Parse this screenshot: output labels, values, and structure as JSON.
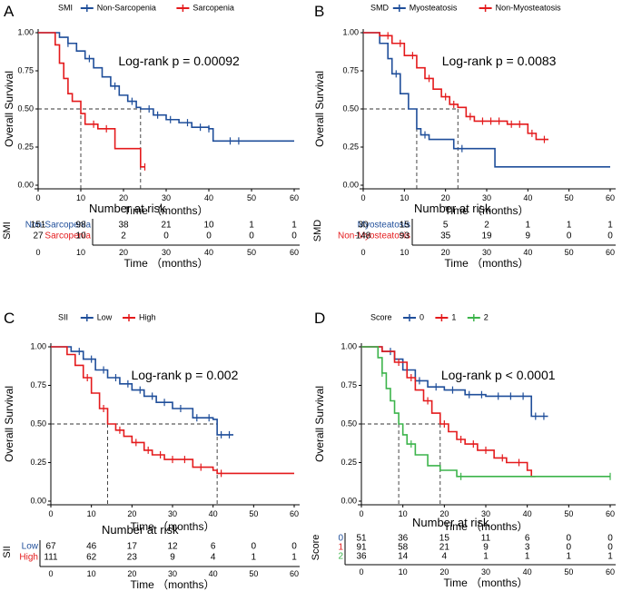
{
  "colors": {
    "blue": "#1f4e9a",
    "red": "#e41a1c",
    "green": "#3cb44b",
    "axis": "#000000",
    "text": "#000000"
  },
  "chart_data": [
    {
      "type": "line",
      "panel_label": "A",
      "title": "",
      "xlabel": "Time （months）",
      "ylabel": "Overall Survival",
      "xlim": [
        0,
        60
      ],
      "ylim": [
        0,
        1
      ],
      "xticks": [
        0,
        10,
        20,
        30,
        40,
        50,
        60
      ],
      "yticks": [
        "0.00",
        "0.25",
        "0.50",
        "0.75",
        "1.00"
      ],
      "legend_title": "SMI",
      "legend_position": "top",
      "annotation": "Log-rank p = 0.00092",
      "median_lines": [
        10,
        24
      ],
      "series": [
        {
          "name": "Non-Sarcopenia",
          "color_key": "blue",
          "points": [
            [
              0,
              1
            ],
            [
              5,
              0.97
            ],
            [
              7,
              0.93
            ],
            [
              9,
              0.88
            ],
            [
              11,
              0.83
            ],
            [
              13,
              0.77
            ],
            [
              15,
              0.71
            ],
            [
              17,
              0.65
            ],
            [
              19,
              0.59
            ],
            [
              21,
              0.55
            ],
            [
              23,
              0.51
            ],
            [
              24,
              0.5
            ],
            [
              27,
              0.46
            ],
            [
              30,
              0.43
            ],
            [
              33,
              0.41
            ],
            [
              36,
              0.38
            ],
            [
              40,
              0.37
            ],
            [
              41,
              0.29
            ],
            [
              42,
              0.29
            ],
            [
              60,
              0.29
            ]
          ],
          "censor": [
            7,
            12,
            18,
            22,
            26,
            28,
            31,
            35,
            38,
            40,
            45,
            47
          ]
        },
        {
          "name": "Sarcopenia",
          "color_key": "red",
          "points": [
            [
              0,
              1
            ],
            [
              4,
              0.92
            ],
            [
              5,
              0.8
            ],
            [
              6,
              0.7
            ],
            [
              7,
              0.6
            ],
            [
              8,
              0.55
            ],
            [
              10,
              0.47
            ],
            [
              11,
              0.4
            ],
            [
              14,
              0.37
            ],
            [
              18,
              0.24
            ],
            [
              24,
              0.12
            ],
            [
              25,
              0.12
            ]
          ],
          "censor": [
            13,
            16,
            25
          ]
        }
      ],
      "risk_table": {
        "title": "Number at risk",
        "ylabel": "SMI",
        "groups": [
          {
            "label": "Non-Sarcopenia",
            "color_key": "blue",
            "counts": [
              "151",
              "98",
              "38",
              "21",
              "10",
              "1",
              "1"
            ]
          },
          {
            "label": "Sarcopenia",
            "color_key": "red",
            "counts": [
              "27",
              "10",
              "2",
              "0",
              "0",
              "0",
              "0"
            ]
          }
        ],
        "xlabel": "Time （months）",
        "xticks": [
          0,
          10,
          20,
          30,
          40,
          50,
          60
        ]
      }
    },
    {
      "type": "line",
      "panel_label": "B",
      "title": "",
      "xlabel": "Time （months）",
      "ylabel": "Overall Survival",
      "xlim": [
        0,
        60
      ],
      "ylim": [
        0,
        1
      ],
      "xticks": [
        0,
        10,
        20,
        30,
        40,
        50,
        60
      ],
      "yticks": [
        "0.00",
        "0.25",
        "0.50",
        "0.75",
        "1.00"
      ],
      "legend_title": "SMD",
      "legend_position": "top",
      "annotation": "Log-rank p = 0.0083",
      "median_lines": [
        13,
        23
      ],
      "series": [
        {
          "name": "Myosteatosis",
          "color_key": "blue",
          "points": [
            [
              0,
              1
            ],
            [
              4,
              0.93
            ],
            [
              6,
              0.83
            ],
            [
              7,
              0.73
            ],
            [
              9,
              0.6
            ],
            [
              11,
              0.5
            ],
            [
              13,
              0.37
            ],
            [
              14,
              0.33
            ],
            [
              16,
              0.3
            ],
            [
              22,
              0.24
            ],
            [
              32,
              0.12
            ],
            [
              60,
              0.12
            ]
          ],
          "censor": [
            8,
            15,
            24
          ]
        },
        {
          "name": "Non-Myosteatosis",
          "color_key": "red",
          "points": [
            [
              0,
              1
            ],
            [
              4,
              0.98
            ],
            [
              7,
              0.93
            ],
            [
              10,
              0.85
            ],
            [
              13,
              0.77
            ],
            [
              15,
              0.7
            ],
            [
              17,
              0.63
            ],
            [
              19,
              0.58
            ],
            [
              21,
              0.53
            ],
            [
              23,
              0.51
            ],
            [
              25,
              0.45
            ],
            [
              27,
              0.42
            ],
            [
              35,
              0.4
            ],
            [
              40,
              0.34
            ],
            [
              42,
              0.3
            ],
            [
              45,
              0.3
            ]
          ],
          "censor": [
            6,
            9,
            12,
            16,
            20,
            22,
            26,
            29,
            31,
            33,
            36,
            38,
            41,
            44
          ]
        }
      ],
      "risk_table": {
        "title": "Number at risk",
        "ylabel": "SMD",
        "groups": [
          {
            "label": "Myosteatosis",
            "color_key": "blue",
            "counts": [
              "30",
              "15",
              "5",
              "2",
              "1",
              "1",
              "1"
            ]
          },
          {
            "label": "Non-Myosteatosis",
            "color_key": "red",
            "counts": [
              "148",
              "93",
              "35",
              "19",
              "9",
              "0",
              "0"
            ]
          }
        ],
        "xlabel": "Time （months）",
        "xticks": [
          0,
          10,
          20,
          30,
          40,
          50,
          60
        ]
      }
    },
    {
      "type": "line",
      "panel_label": "C",
      "title": "",
      "xlabel": "Time （months）",
      "ylabel": "Overall Survival",
      "xlim": [
        0,
        60
      ],
      "ylim": [
        0,
        1
      ],
      "xticks": [
        0,
        10,
        20,
        30,
        40,
        50,
        60
      ],
      "yticks": [
        "0.00",
        "0.25",
        "0.50",
        "0.75",
        "1.00"
      ],
      "legend_title": "SII",
      "legend_position": "top",
      "annotation": "Log-rank p = 0.002",
      "median_lines": [
        14,
        41
      ],
      "series": [
        {
          "name": "Low",
          "color_key": "blue",
          "points": [
            [
              0,
              1
            ],
            [
              5,
              0.97
            ],
            [
              8,
              0.92
            ],
            [
              11,
              0.85
            ],
            [
              14,
              0.8
            ],
            [
              17,
              0.76
            ],
            [
              20,
              0.72
            ],
            [
              23,
              0.68
            ],
            [
              26,
              0.64
            ],
            [
              30,
              0.6
            ],
            [
              35,
              0.54
            ],
            [
              40,
              0.53
            ],
            [
              41,
              0.43
            ],
            [
              45,
              0.43
            ]
          ],
          "censor": [
            7,
            10,
            13,
            16,
            19,
            22,
            25,
            28,
            32,
            36,
            39,
            42,
            44
          ]
        },
        {
          "name": "High",
          "color_key": "red",
          "points": [
            [
              0,
              1
            ],
            [
              4,
              0.95
            ],
            [
              6,
              0.88
            ],
            [
              8,
              0.8
            ],
            [
              10,
              0.7
            ],
            [
              12,
              0.6
            ],
            [
              14,
              0.5
            ],
            [
              16,
              0.46
            ],
            [
              18,
              0.42
            ],
            [
              20,
              0.38
            ],
            [
              23,
              0.33
            ],
            [
              25,
              0.3
            ],
            [
              28,
              0.27
            ],
            [
              35,
              0.22
            ],
            [
              40,
              0.2
            ],
            [
              41,
              0.18
            ],
            [
              60,
              0.18
            ]
          ],
          "censor": [
            9,
            13,
            17,
            21,
            24,
            27,
            30,
            33,
            37,
            42
          ]
        }
      ],
      "risk_table": {
        "title": "Number at risk",
        "ylabel": "SII",
        "groups": [
          {
            "label": "Low",
            "color_key": "blue",
            "counts": [
              "67",
              "46",
              "17",
              "12",
              "6",
              "0",
              "0"
            ]
          },
          {
            "label": "High",
            "color_key": "red",
            "counts": [
              "111",
              "62",
              "23",
              "9",
              "4",
              "1",
              "1"
            ]
          }
        ],
        "xlabel": "Time （months）",
        "xticks": [
          0,
          10,
          20,
          30,
          40,
          50,
          60
        ]
      }
    },
    {
      "type": "line",
      "panel_label": "D",
      "title": "",
      "xlabel": "Time （months）",
      "ylabel": "Overall Survival",
      "xlim": [
        0,
        60
      ],
      "ylim": [
        0,
        1
      ],
      "xticks": [
        0,
        10,
        20,
        30,
        40,
        50,
        60
      ],
      "yticks": [
        "0.00",
        "0.25",
        "0.50",
        "0.75",
        "1.00"
      ],
      "legend_title": "Score",
      "legend_position": "top",
      "annotation": "Log-rank p < 0.0001",
      "median_lines": [
        9,
        19
      ],
      "series": [
        {
          "name": "0",
          "color_key": "blue",
          "points": [
            [
              0,
              1
            ],
            [
              5,
              0.97
            ],
            [
              8,
              0.92
            ],
            [
              10,
              0.85
            ],
            [
              13,
              0.78
            ],
            [
              16,
              0.74
            ],
            [
              20,
              0.72
            ],
            [
              25,
              0.69
            ],
            [
              30,
              0.68
            ],
            [
              40,
              0.68
            ],
            [
              41,
              0.55
            ],
            [
              45,
              0.55
            ]
          ],
          "censor": [
            7,
            11,
            14,
            18,
            22,
            26,
            29,
            33,
            36,
            39,
            42,
            44
          ]
        },
        {
          "name": "1",
          "color_key": "red",
          "points": [
            [
              0,
              1
            ],
            [
              5,
              0.97
            ],
            [
              8,
              0.9
            ],
            [
              11,
              0.8
            ],
            [
              13,
              0.72
            ],
            [
              15,
              0.65
            ],
            [
              17,
              0.57
            ],
            [
              19,
              0.5
            ],
            [
              21,
              0.45
            ],
            [
              23,
              0.4
            ],
            [
              25,
              0.37
            ],
            [
              28,
              0.33
            ],
            [
              32,
              0.28
            ],
            [
              35,
              0.25
            ],
            [
              40,
              0.2
            ],
            [
              41,
              0.16
            ],
            [
              42,
              0.16
            ]
          ],
          "censor": [
            9,
            12,
            16,
            20,
            24,
            27,
            30,
            34,
            38
          ]
        },
        {
          "name": "2",
          "color_key": "green",
          "points": [
            [
              0,
              1
            ],
            [
              4,
              0.93
            ],
            [
              5,
              0.83
            ],
            [
              6,
              0.73
            ],
            [
              7,
              0.65
            ],
            [
              8,
              0.57
            ],
            [
              9,
              0.5
            ],
            [
              10,
              0.43
            ],
            [
              11,
              0.37
            ],
            [
              13,
              0.3
            ],
            [
              16,
              0.23
            ],
            [
              19,
              0.2
            ],
            [
              23,
              0.16
            ],
            [
              60,
              0.16
            ]
          ],
          "censor": [
            5,
            12,
            24,
            60
          ]
        }
      ],
      "risk_table": {
        "title": "Number at risk",
        "ylabel": "Score",
        "groups": [
          {
            "label": "0",
            "color_key": "blue",
            "counts": [
              "51",
              "36",
              "15",
              "11",
              "6",
              "0",
              "0"
            ]
          },
          {
            "label": "1",
            "color_key": "red",
            "counts": [
              "91",
              "58",
              "21",
              "9",
              "3",
              "0",
              "0"
            ]
          },
          {
            "label": "2",
            "color_key": "green",
            "counts": [
              "36",
              "14",
              "4",
              "1",
              "1",
              "1",
              "1"
            ]
          }
        ],
        "xlabel": "Time （months）",
        "xticks": [
          0,
          10,
          20,
          30,
          40,
          50,
          60
        ]
      }
    }
  ]
}
